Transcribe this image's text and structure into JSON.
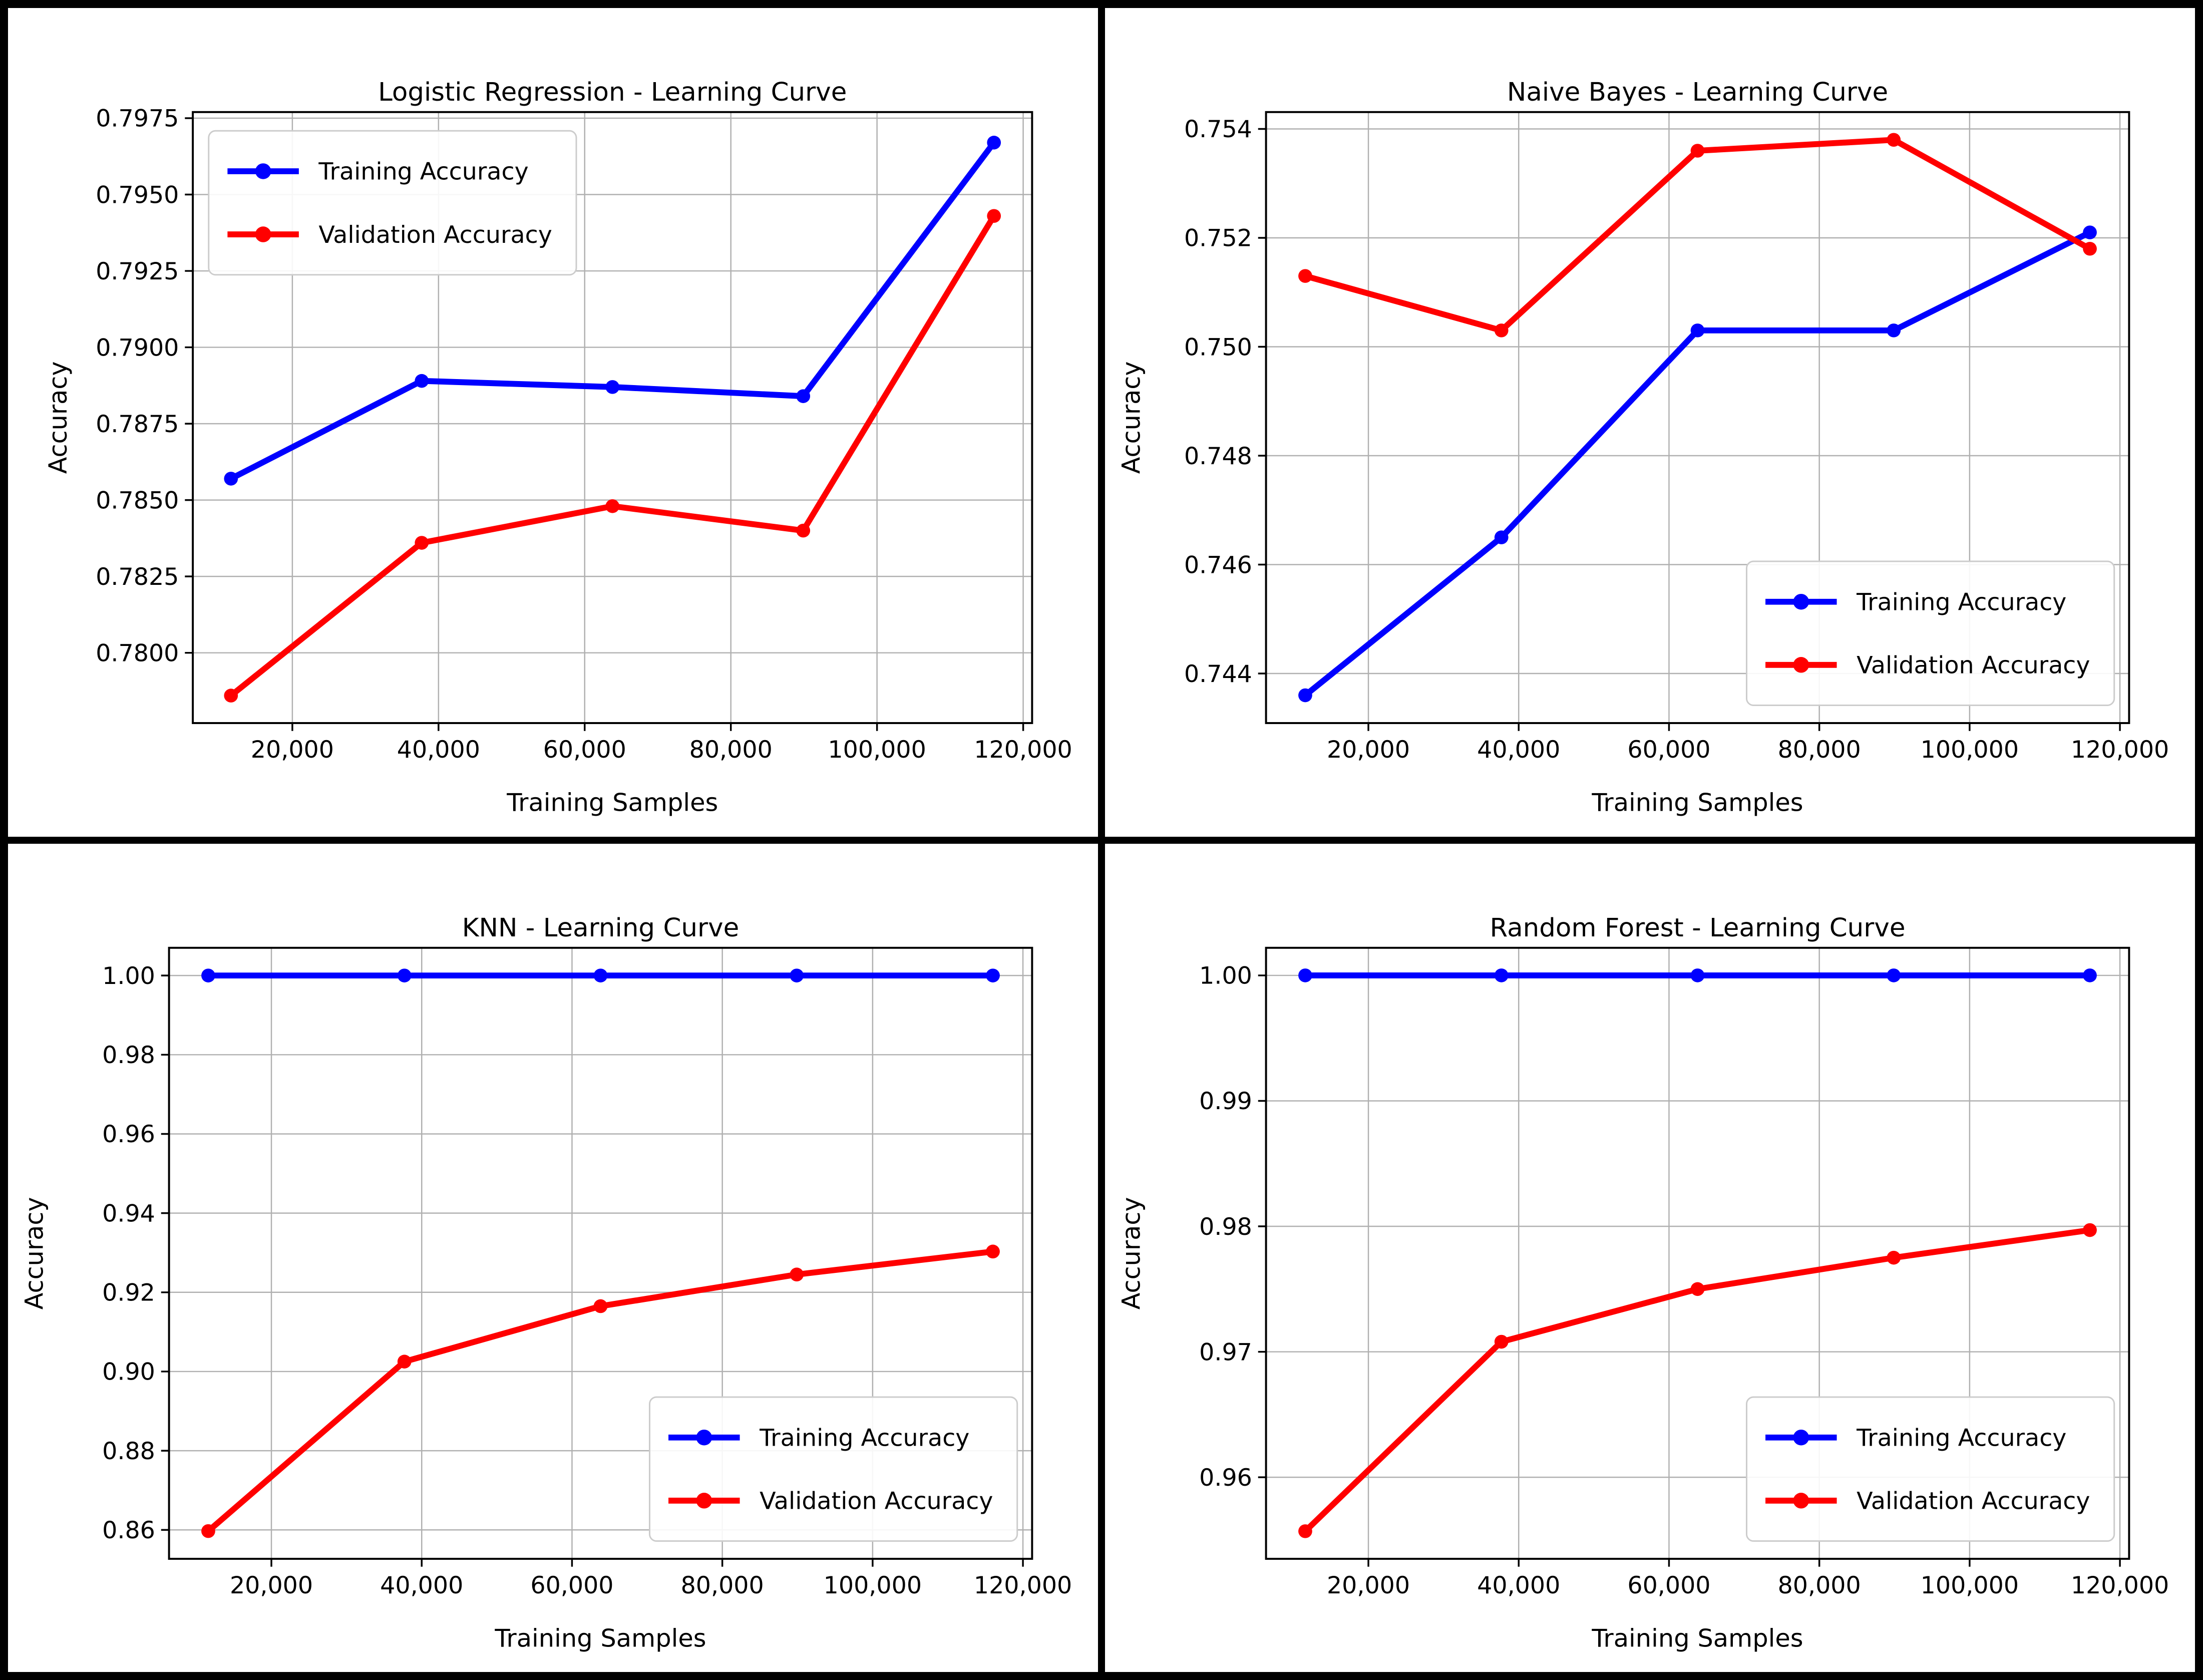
{
  "figure": {
    "background": "#ffffff",
    "frame_color": "#000000",
    "grid_color": "#b0b0b0",
    "spine_color": "#000000",
    "train_color": "#0000ff",
    "val_color": "#ff0000",
    "legend_labels": [
      "Training Accuracy",
      "Validation Accuracy"
    ]
  },
  "chart_data": [
    {
      "type": "line",
      "title": "Logistic Regression - Learning Curve",
      "xlabel": "Training Samples",
      "ylabel": "Accuracy",
      "legend_position": "upper-left",
      "grid": true,
      "x": [
        11600,
        37700,
        63800,
        89900,
        116000
      ],
      "xlim": [
        6380,
        121220
      ],
      "xticks": [
        20000,
        40000,
        60000,
        80000,
        100000,
        120000
      ],
      "xtick_labels": [
        "20,000",
        "40,000",
        "60,000",
        "80,000",
        "100,000",
        "120,000"
      ],
      "ylim": [
        0.7777,
        0.7977
      ],
      "yticks": [
        0.78,
        0.7825,
        0.785,
        0.7875,
        0.79,
        0.7925,
        0.795,
        0.7975
      ],
      "ytick_labels": [
        "0.7800",
        "0.7825",
        "0.7850",
        "0.7875",
        "0.7900",
        "0.7925",
        "0.7950",
        "0.7975"
      ],
      "series": [
        {
          "name": "Training Accuracy",
          "color": "#0000ff",
          "values": [
            0.7857,
            0.7889,
            0.7887,
            0.7884,
            0.7967
          ]
        },
        {
          "name": "Validation Accuracy",
          "color": "#ff0000",
          "values": [
            0.7786,
            0.7836,
            0.7848,
            0.784,
            0.7943
          ]
        }
      ]
    },
    {
      "type": "line",
      "title": "Naive Bayes - Learning Curve",
      "xlabel": "Training Samples",
      "ylabel": "Accuracy",
      "legend_position": "lower-right",
      "grid": true,
      "x": [
        11600,
        37700,
        63800,
        89900,
        116000
      ],
      "xlim": [
        6380,
        121220
      ],
      "xticks": [
        20000,
        40000,
        60000,
        80000,
        100000,
        120000
      ],
      "xtick_labels": [
        "20,000",
        "40,000",
        "60,000",
        "80,000",
        "100,000",
        "120,000"
      ],
      "ylim": [
        0.74309,
        0.75431
      ],
      "yticks": [
        0.744,
        0.746,
        0.748,
        0.75,
        0.752,
        0.754
      ],
      "ytick_labels": [
        "0.744",
        "0.746",
        "0.748",
        "0.750",
        "0.752",
        "0.754"
      ],
      "series": [
        {
          "name": "Training Accuracy",
          "color": "#0000ff",
          "values": [
            0.7436,
            0.7465,
            0.7503,
            0.7503,
            0.7521
          ]
        },
        {
          "name": "Validation Accuracy",
          "color": "#ff0000",
          "values": [
            0.7513,
            0.7503,
            0.7536,
            0.7538,
            0.7518
          ]
        }
      ]
    },
    {
      "type": "line",
      "title": "KNN - Learning Curve",
      "xlabel": "Training Samples",
      "ylabel": "Accuracy",
      "legend_position": "lower-right",
      "grid": true,
      "x": [
        11600,
        37700,
        63800,
        89900,
        116000
      ],
      "xlim": [
        6380,
        121220
      ],
      "xticks": [
        20000,
        40000,
        60000,
        80000,
        100000,
        120000
      ],
      "xtick_labels": [
        "20,000",
        "40,000",
        "60,000",
        "80,000",
        "100,000",
        "120,000"
      ],
      "ylim": [
        0.8527,
        1.007
      ],
      "yticks": [
        0.86,
        0.88,
        0.9,
        0.92,
        0.94,
        0.96,
        0.98,
        1.0
      ],
      "ytick_labels": [
        "0.86",
        "0.88",
        "0.90",
        "0.92",
        "0.94",
        "0.96",
        "0.98",
        "1.00"
      ],
      "series": [
        {
          "name": "Training Accuracy",
          "color": "#0000ff",
          "values": [
            1.0,
            1.0,
            1.0,
            1.0,
            1.0
          ]
        },
        {
          "name": "Validation Accuracy",
          "color": "#ff0000",
          "values": [
            0.8597,
            0.9025,
            0.9165,
            0.9245,
            0.9303
          ]
        }
      ]
    },
    {
      "type": "line",
      "title": "Random Forest - Learning Curve",
      "xlabel": "Training Samples",
      "ylabel": "Accuracy",
      "legend_position": "lower-right",
      "grid": true,
      "x": [
        11600,
        37700,
        63800,
        89900,
        116000
      ],
      "xlim": [
        6380,
        121220
      ],
      "xticks": [
        20000,
        40000,
        60000,
        80000,
        100000,
        120000
      ],
      "xtick_labels": [
        "20,000",
        "40,000",
        "60,000",
        "80,000",
        "100,000",
        "120,000"
      ],
      "ylim": [
        0.9535,
        1.0022
      ],
      "yticks": [
        0.96,
        0.97,
        0.98,
        0.99,
        1.0
      ],
      "ytick_labels": [
        "0.96",
        "0.97",
        "0.98",
        "0.99",
        "1.00"
      ],
      "series": [
        {
          "name": "Training Accuracy",
          "color": "#0000ff",
          "values": [
            1.0,
            1.0,
            1.0,
            1.0,
            1.0
          ]
        },
        {
          "name": "Validation Accuracy",
          "color": "#ff0000",
          "values": [
            0.9557,
            0.9708,
            0.975,
            0.9775,
            0.9797
          ]
        }
      ]
    }
  ]
}
